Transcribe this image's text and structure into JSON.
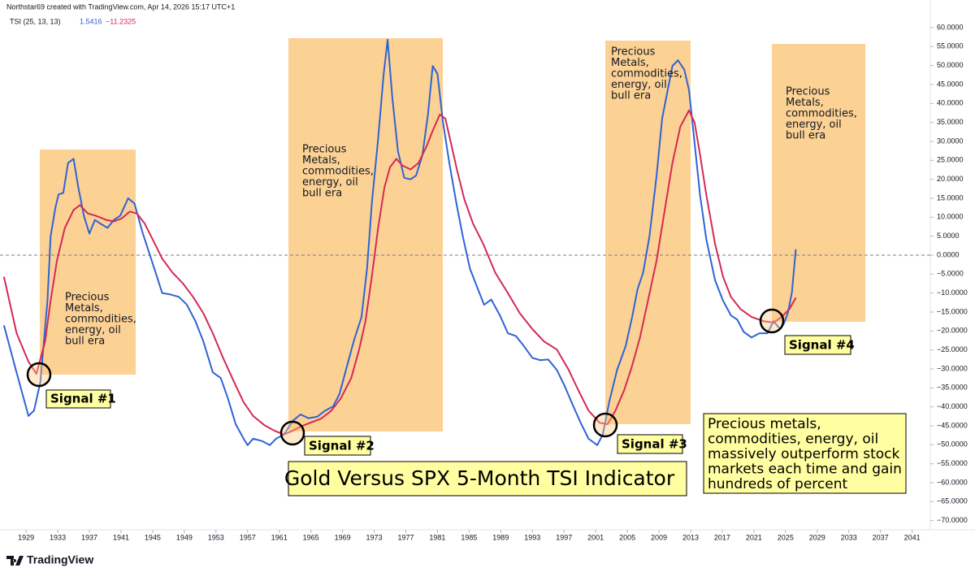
{
  "chart_data": {
    "type": "line",
    "credit": "Northstar69 created with TradingView.com, Apr 14, 2026 15:17 UTC+1",
    "indicator": "TSI (25, 13, 13)",
    "indicator_values": [
      "1.5416",
      "−11.2325"
    ],
    "brand": "TradingView",
    "title": "Gold Versus SPX 5-Month TSI Indicator",
    "note": [
      "Precious metals,",
      "commodities, energy, oil",
      "massively outperform stock",
      "markets each time and gain",
      "hundreds of percent"
    ],
    "eras": [
      {
        "lines": [
          "Precious",
          "Metals,",
          "commodities,",
          "energy, oil",
          "bull era"
        ]
      },
      {
        "lines": [
          "Precious",
          "Metals,",
          "commodities,",
          "energy, oil",
          "bull era"
        ]
      },
      {
        "lines": [
          "Precious",
          "Metals,",
          "commodities,",
          "energy, oil",
          "bull era"
        ]
      },
      {
        "lines": [
          "Precious",
          "Metals,",
          "commodities,",
          "energy, oil",
          "bull era"
        ]
      }
    ],
    "signals": [
      "Signal #1",
      "Signal #2",
      "Signal #3",
      "Signal #4"
    ],
    "xlim": [
      1925.7,
      2043.3
    ],
    "ylim": [
      -72,
      63
    ],
    "xticks": [
      1929,
      1933,
      1937,
      1941,
      1945,
      1949,
      1953,
      1957,
      1961,
      1965,
      1969,
      1973,
      1977,
      1981,
      1985,
      1989,
      1993,
      1997,
      2001,
      2005,
      2009,
      2013,
      2017,
      2021,
      2025,
      2029,
      2033,
      2037,
      2041
    ],
    "yticks": [
      {
        "value": 60,
        "label": "60.0000"
      },
      {
        "value": 55,
        "label": "55.0000"
      },
      {
        "value": 50,
        "label": "50.0000"
      },
      {
        "value": 45,
        "label": "45.0000"
      },
      {
        "value": 40,
        "label": "40.0000"
      },
      {
        "value": 35,
        "label": "35.0000"
      },
      {
        "value": 30,
        "label": "30.0000"
      },
      {
        "value": 25,
        "label": "25.0000"
      },
      {
        "value": 20,
        "label": "20.0000"
      },
      {
        "value": 15,
        "label": "15.0000"
      },
      {
        "value": 10,
        "label": "10.0000"
      },
      {
        "value": 5,
        "label": "5.0000"
      },
      {
        "value": 0,
        "label": "0.0000"
      },
      {
        "value": -5,
        "label": "−5.0000"
      },
      {
        "value": -10,
        "label": "−10.0000"
      },
      {
        "value": -15,
        "label": "−15.0000"
      },
      {
        "value": -20,
        "label": "−20.0000"
      },
      {
        "value": -25,
        "label": "−25.0000"
      },
      {
        "value": -30,
        "label": "−30.0000"
      },
      {
        "value": -35,
        "label": "−35.0000"
      },
      {
        "value": -40,
        "label": "−40.0000"
      },
      {
        "value": -45,
        "label": "−45.0000"
      },
      {
        "value": -50,
        "label": "−50.0000"
      },
      {
        "value": -55,
        "label": "−55.0000"
      },
      {
        "value": -60,
        "label": "−60.0000"
      },
      {
        "value": -65,
        "label": "−65.0000"
      },
      {
        "value": -70,
        "label": "−70.0000"
      }
    ],
    "zero_line": 0,
    "grid": false,
    "series": [
      {
        "color": "#2f63d6",
        "x": [
          1926.2,
          1927.8,
          1929.3,
          1930.0,
          1930.8,
          1931.7,
          1932.1,
          1932.7,
          1933.1,
          1933.7,
          1934.3,
          1935.0,
          1935.6,
          1936.3,
          1937.0,
          1937.7,
          1938.4,
          1939.3,
          1940.1,
          1940.9,
          1941.9,
          1942.7,
          1943.7,
          1944.7,
          1945.7,
          1946.2,
          1947.3,
          1948.3,
          1949.3,
          1950.4,
          1951.4,
          1952.6,
          1953.6,
          1954.5,
          1955.5,
          1956.5,
          1957.0,
          1957.7,
          1958.8,
          1959.8,
          1960.6,
          1961.6,
          1962.7,
          1963.7,
          1964.7,
          1965.8,
          1966.8,
          1967.8,
          1968.6,
          1969.3,
          1970.4,
          1971.4,
          1972.1,
          1972.7,
          1973.5,
          1974.2,
          1974.7,
          1975.3,
          1976.0,
          1976.8,
          1977.6,
          1978.3,
          1979.1,
          1979.8,
          1980.4,
          1981.0,
          1981.7,
          1982.5,
          1983.4,
          1984.2,
          1985.1,
          1986.1,
          1986.9,
          1987.8,
          1988.9,
          1989.9,
          1990.9,
          1991.9,
          1993.0,
          1994.0,
          1995.0,
          1996.1,
          1997.1,
          1998.1,
          1999.1,
          2000.1,
          2001.2,
          2001.9,
          2002.7,
          2003.7,
          2004.8,
          2005.6,
          2006.3,
          2007.0,
          2007.8,
          2008.7,
          2009.4,
          2010.1,
          2010.7,
          2011.4,
          2012.2,
          2012.8,
          2013.5,
          2014.2,
          2015.0,
          2016.1,
          2017.1,
          2018.1,
          2018.9,
          2019.7,
          2020.7,
          2021.7,
          2022.7,
          2023.5,
          2024.3,
          2024.8,
          2025.3,
          2025.8,
          2026.3
        ],
        "values": [
          -18.5,
          -31,
          -42.4,
          -41,
          -33.5,
          -12,
          5,
          12.5,
          16,
          16.4,
          24.3,
          25.4,
          17.9,
          10.4,
          5.7,
          9.3,
          8.3,
          7.2,
          9.3,
          10.4,
          15,
          13.6,
          6.1,
          -0.3,
          -6.7,
          -10,
          -10.4,
          -11,
          -13,
          -17.4,
          -22.7,
          -30.9,
          -32.4,
          -37.7,
          -44.6,
          -48.4,
          -50.1,
          -48.4,
          -49,
          -50.1,
          -48.4,
          -47.3,
          -43.7,
          -42,
          -43,
          -42.6,
          -41,
          -39.9,
          -36.7,
          -31.3,
          -22.8,
          -16.3,
          -3.5,
          13.6,
          30.7,
          47.8,
          56.8,
          41.4,
          27.5,
          20.4,
          20,
          21,
          26.4,
          37.1,
          49.9,
          47.8,
          35,
          24.3,
          13.6,
          5,
          -3.5,
          -8.9,
          -13.1,
          -11.7,
          -15.9,
          -20.6,
          -21.3,
          -23.9,
          -27.1,
          -27.7,
          -27.5,
          -30.3,
          -34.6,
          -39.5,
          -44.2,
          -48.4,
          -50.1,
          -47.3,
          -38.8,
          -30.3,
          -23.9,
          -16.4,
          -8.9,
          -4.6,
          5,
          21,
          36,
          43.5,
          49.9,
          51.4,
          48.9,
          43.5,
          29.6,
          15.7,
          4,
          -6.7,
          -12,
          -15.9,
          -17,
          -20.2,
          -21.7,
          -20.6,
          -20.6,
          -17.4,
          -19.5,
          -18,
          -15.2,
          -9.9,
          1.5416
        ]
      },
      {
        "color": "#d42a55",
        "x": [
          1926.2,
          1927.8,
          1929.3,
          1930.3,
          1931.4,
          1932.1,
          1932.9,
          1933.9,
          1935.0,
          1935.8,
          1936.8,
          1937.8,
          1939.1,
          1940.1,
          1941.1,
          1942.1,
          1943.0,
          1944.0,
          1945.2,
          1946.2,
          1947.5,
          1948.8,
          1950.1,
          1951.4,
          1952.6,
          1953.9,
          1955.3,
          1956.5,
          1957.7,
          1959.1,
          1960.4,
          1961.6,
          1962.7,
          1963.7,
          1964.9,
          1966.3,
          1967.6,
          1968.8,
          1970.1,
          1971.1,
          1971.9,
          1972.7,
          1973.5,
          1974.3,
          1975.0,
          1975.8,
          1976.6,
          1977.6,
          1978.6,
          1979.6,
          1980.4,
          1981.3,
          1982.0,
          1982.7,
          1983.5,
          1984.4,
          1985.5,
          1986.8,
          1988.3,
          1989.9,
          1991.4,
          1993.0,
          1994.5,
          1996.1,
          1997.6,
          1998.8,
          2000.1,
          2001.5,
          2002.5,
          2003.5,
          2004.6,
          2005.6,
          2006.6,
          2007.6,
          2008.7,
          2009.7,
          2010.7,
          2011.7,
          2012.8,
          2013.5,
          2014.2,
          2015.0,
          2016.1,
          2017.1,
          2018.1,
          2019.3,
          2020.7,
          2022.2,
          2023.5,
          2024.5,
          2025.5,
          2026.3
        ],
        "values": [
          -5.7,
          -20.6,
          -28.1,
          -31.3,
          -22.8,
          -12,
          -1.4,
          7.2,
          11.9,
          13.2,
          11,
          10.4,
          9.3,
          8.9,
          9.7,
          11.5,
          11,
          8.3,
          3.3,
          -0.9,
          -4.6,
          -7.4,
          -11,
          -15.3,
          -20.6,
          -27.1,
          -33.5,
          -38.8,
          -42.4,
          -44.8,
          -46.3,
          -47.3,
          -46.3,
          -45.2,
          -44.2,
          -43.1,
          -41,
          -37.7,
          -32.4,
          -24.9,
          -17.4,
          -5.7,
          7.2,
          17.9,
          23.2,
          25.4,
          23.6,
          22.6,
          24.3,
          28.6,
          32.8,
          37.1,
          36,
          29.6,
          22.2,
          14.7,
          8.3,
          2.9,
          -4.6,
          -10,
          -15.3,
          -19.5,
          -22.8,
          -24.9,
          -30.3,
          -35.6,
          -41,
          -44.2,
          -44.6,
          -41,
          -35.6,
          -29.2,
          -21.7,
          -12.1,
          -1.4,
          11.5,
          24.3,
          33.9,
          38.2,
          35,
          26.4,
          15.7,
          2.9,
          -5.7,
          -11,
          -14.2,
          -16.3,
          -17.4,
          -17.8,
          -16.3,
          -14.2,
          -11.2325
        ]
      }
    ]
  }
}
